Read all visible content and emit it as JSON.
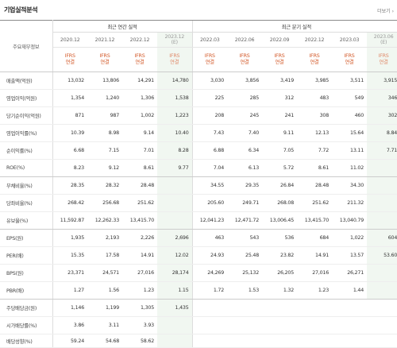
{
  "header": {
    "title": "기업실적분석",
    "more": "더보기 ›"
  },
  "table": {
    "corner_label": "주요재무정보",
    "annual_label": "최근 연간 실적",
    "quarter_label": "최근 분기 실적",
    "periods": [
      {
        "label": "2020.12",
        "est": ""
      },
      {
        "label": "2021.12",
        "est": ""
      },
      {
        "label": "2022.12",
        "est": ""
      },
      {
        "label": "2023.12",
        "est": "(E)"
      },
      {
        "label": "2022.03",
        "est": ""
      },
      {
        "label": "2022.06",
        "est": ""
      },
      {
        "label": "2022.09",
        "est": ""
      },
      {
        "label": "2022.12",
        "est": ""
      },
      {
        "label": "2023.03",
        "est": ""
      },
      {
        "label": "2023.06",
        "est": "(E)"
      }
    ],
    "ifrs_top": "IFRS",
    "ifrs_bottom": "연결",
    "rows": [
      {
        "label": "매출액(억원)",
        "values": [
          "13,032",
          "13,806",
          "14,291",
          "14,780",
          "3,030",
          "3,856",
          "3,419",
          "3,985",
          "3,511",
          "3,915"
        ]
      },
      {
        "label": "영업이익(억원)",
        "values": [
          "1,354",
          "1,240",
          "1,306",
          "1,538",
          "225",
          "285",
          "312",
          "483",
          "549",
          "346"
        ]
      },
      {
        "label": "당기순이익(억원)",
        "values": [
          "871",
          "987",
          "1,002",
          "1,223",
          "208",
          "245",
          "241",
          "308",
          "460",
          "302"
        ]
      },
      {
        "label": "영업이익률(%)",
        "values": [
          "10.39",
          "8.98",
          "9.14",
          "10.40",
          "7.43",
          "7.40",
          "9.11",
          "12.13",
          "15.64",
          "8.84"
        ]
      },
      {
        "label": "순이익률(%)",
        "values": [
          "6.68",
          "7.15",
          "7.01",
          "8.28",
          "6.88",
          "6.34",
          "7.05",
          "7.72",
          "13.11",
          "7.71"
        ]
      },
      {
        "label": "ROE(%)",
        "values": [
          "8.23",
          "9.12",
          "8.61",
          "9.77",
          "7.04",
          "6.13",
          "5.72",
          "8.61",
          "11.02",
          ""
        ]
      },
      {
        "label": "부채비율(%)",
        "values": [
          "28.35",
          "28.32",
          "28.48",
          "",
          "34.55",
          "29.35",
          "26.84",
          "28.48",
          "34.30",
          ""
        ]
      },
      {
        "label": "당좌비율(%)",
        "values": [
          "268.42",
          "256.68",
          "251.62",
          "",
          "205.60",
          "249.71",
          "268.08",
          "251.62",
          "211.32",
          ""
        ]
      },
      {
        "label": "유보율(%)",
        "values": [
          "11,592.87",
          "12,262.33",
          "13,415.70",
          "",
          "12,041.23",
          "12,471.72",
          "13,006.45",
          "13,415.70",
          "13,040.79",
          ""
        ]
      },
      {
        "label": "EPS(원)",
        "values": [
          "1,935",
          "2,193",
          "2,226",
          "2,696",
          "463",
          "543",
          "536",
          "684",
          "1,022",
          "604"
        ]
      },
      {
        "label": "PER(배)",
        "values": [
          "15.35",
          "17.58",
          "14.91",
          "12.02",
          "24.93",
          "25.48",
          "23.82",
          "14.91",
          "13.57",
          "53.60"
        ]
      },
      {
        "label": "BPS(원)",
        "values": [
          "23,371",
          "24,571",
          "27,016",
          "28,174",
          "24,269",
          "25,132",
          "26,205",
          "27,016",
          "26,271",
          ""
        ]
      },
      {
        "label": "PBR(배)",
        "values": [
          "1.27",
          "1.56",
          "1.23",
          "1.15",
          "1.72",
          "1.53",
          "1.32",
          "1.23",
          "1.44",
          ""
        ]
      },
      {
        "label": "주당배당금(원)",
        "values": [
          "1,146",
          "1,199",
          "1,305",
          "1,435",
          "",
          "",
          "",
          "",
          "",
          ""
        ]
      },
      {
        "label": "시가배당률(%)",
        "values": [
          "3.86",
          "3.11",
          "3.93",
          "",
          "",
          "",
          "",
          "",
          "",
          ""
        ]
      },
      {
        "label": "배당성향(%)",
        "values": [
          "59.24",
          "54.68",
          "58.62",
          "",
          "",
          "",
          "",
          "",
          "",
          ""
        ]
      }
    ]
  }
}
